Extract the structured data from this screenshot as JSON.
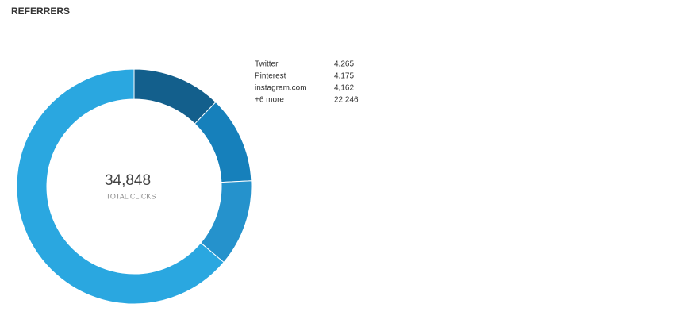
{
  "chart_data": {
    "type": "donut",
    "title": "REFERRERS",
    "categories": [
      "Twitter",
      "Pinterest",
      "instagram.com",
      "+6 more"
    ],
    "values": [
      4265,
      4175,
      4162,
      22246
    ],
    "value_labels": [
      "4,265",
      "4,175",
      "4,162",
      "22,246"
    ],
    "colors": [
      "#135f8c",
      "#1680bb",
      "#2592cc",
      "#2aa7e0"
    ],
    "total": {
      "value": 34848,
      "label": "34,848"
    },
    "total_caption": "TOTAL CLICKS"
  }
}
